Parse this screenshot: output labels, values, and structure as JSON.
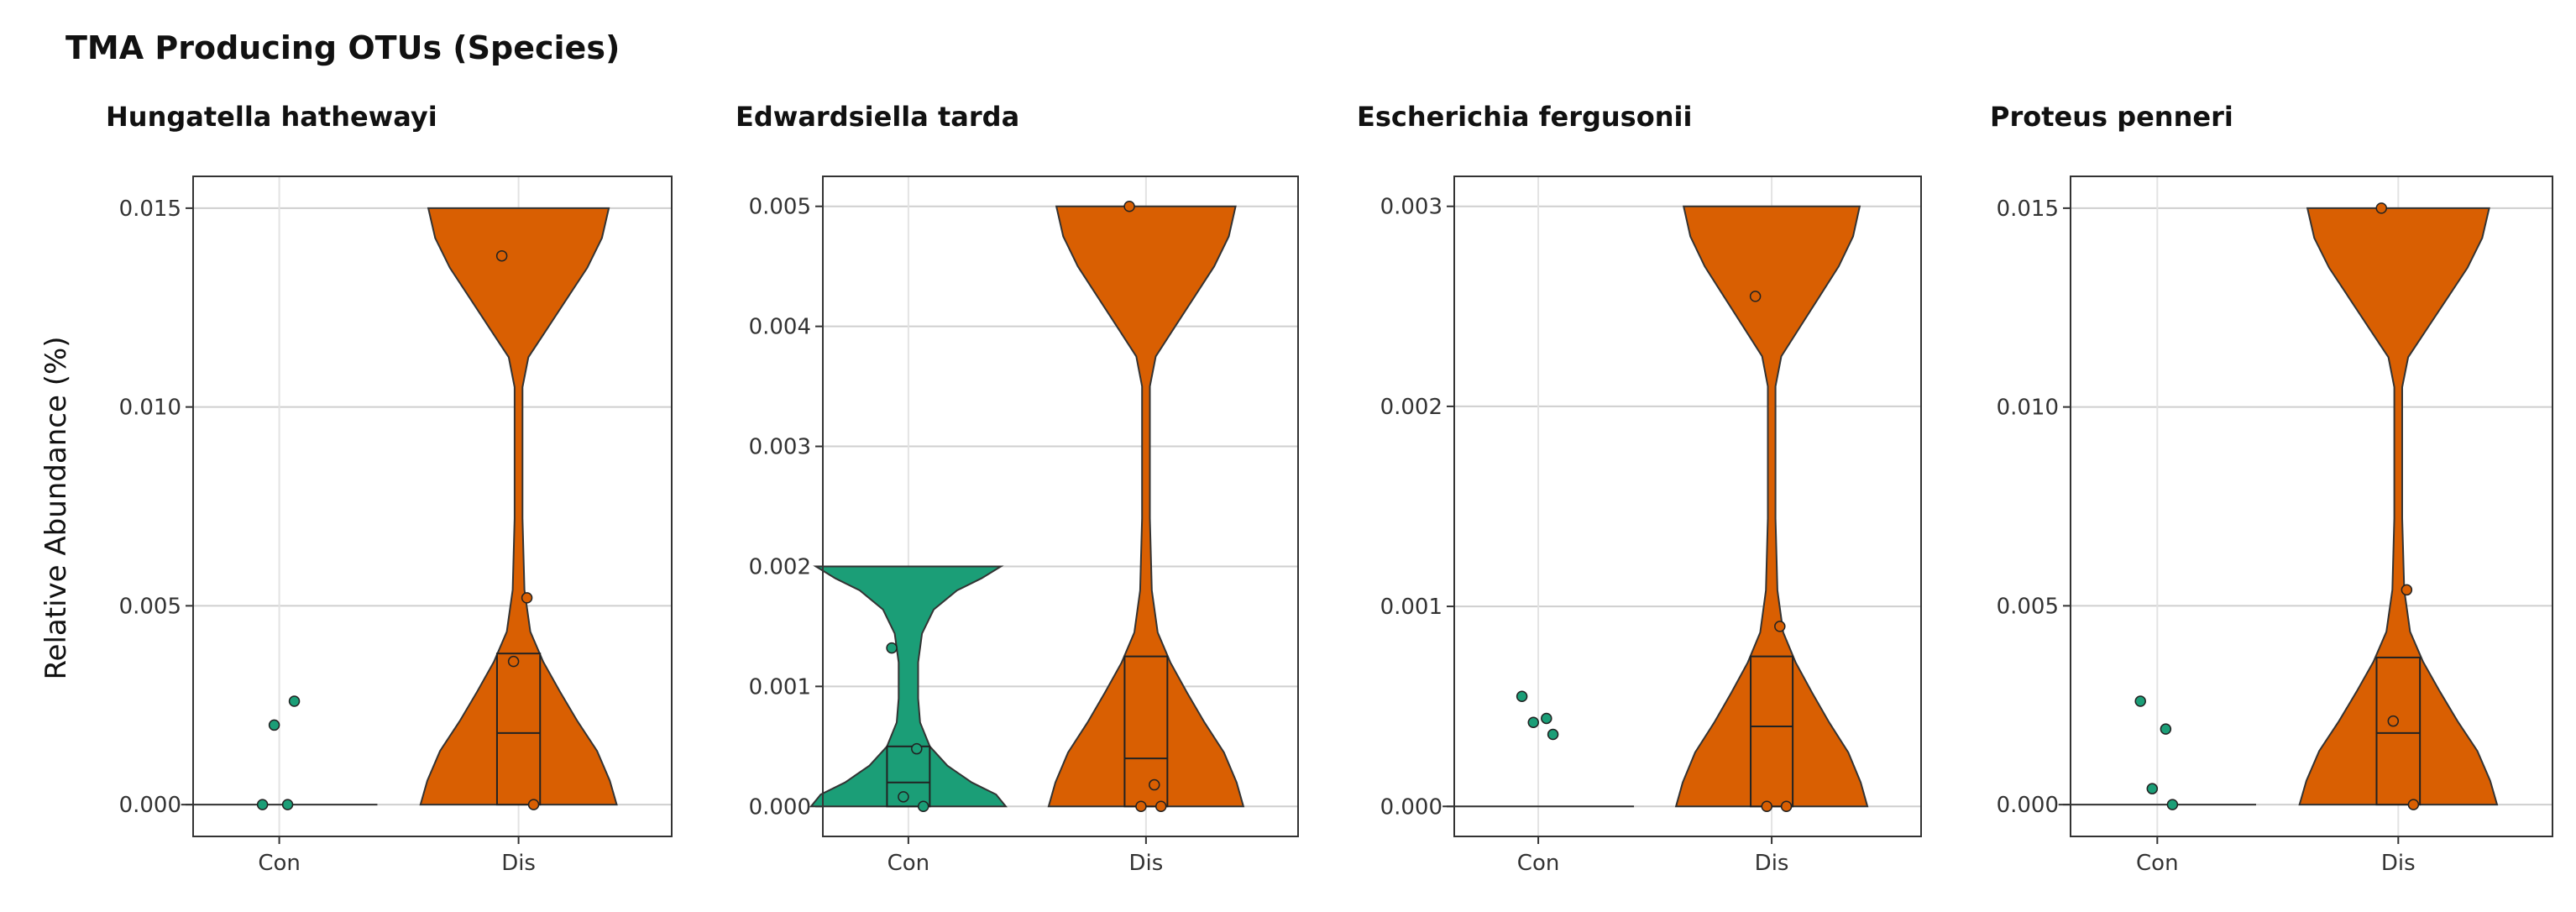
{
  "figure": {
    "title": "TMA Producing OTUs (Species)",
    "ylabel": "Relative Abundance (%)"
  },
  "colors": {
    "Con": "#1b9e77",
    "Dis": "#d95f02"
  },
  "chart_data": [
    {
      "type": "violin",
      "title": "Hungatella hathewayi",
      "categories": [
        "Con",
        "Dis"
      ],
      "ylim": [
        -0.0008,
        0.0158
      ],
      "yticks": [
        0,
        0.005,
        0.01,
        0.015
      ],
      "ytick_labels": [
        "0.000",
        "0.005",
        "0.010",
        "0.015"
      ],
      "grid": true,
      "series": [
        {
          "category": "Con",
          "points": [
            0,
            0,
            0.002,
            0.0026
          ],
          "box": [
            0,
            0,
            0
          ],
          "violin_max": 0
        },
        {
          "category": "Dis",
          "points": [
            0.0138,
            0.0052,
            0.0036,
            0
          ],
          "box": [
            0,
            0.0018,
            0.0038
          ],
          "violin_max": 0.015
        }
      ]
    },
    {
      "type": "violin",
      "title": "Edwardsiella tarda",
      "categories": [
        "Con",
        "Dis"
      ],
      "ylim": [
        -0.00025,
        0.00525
      ],
      "yticks": [
        0,
        0.001,
        0.002,
        0.003,
        0.004,
        0.005
      ],
      "ytick_labels": [
        "0.000",
        "0.001",
        "0.002",
        "0.003",
        "0.004",
        "0.005"
      ],
      "grid": true,
      "series": [
        {
          "category": "Con",
          "points": [
            0.00132,
            0.00048,
            8e-05,
            0
          ],
          "box": [
            0,
            0.0002,
            0.0005
          ],
          "violin_max": 0.002
        },
        {
          "category": "Dis",
          "points": [
            0.005,
            0.00018,
            0,
            0
          ],
          "box": [
            0,
            0.0004,
            0.00125
          ],
          "violin_max": 0.005
        }
      ]
    },
    {
      "type": "violin",
      "title": "Escherichia fergusonii",
      "categories": [
        "Con",
        "Dis"
      ],
      "ylim": [
        -0.00015,
        0.00315
      ],
      "yticks": [
        0,
        0.001,
        0.002,
        0.003
      ],
      "ytick_labels": [
        "0.000",
        "0.001",
        "0.002",
        "0.003"
      ],
      "grid": true,
      "series": [
        {
          "category": "Con",
          "points": [
            0.00055,
            0.00044,
            0.00042,
            0.00036
          ],
          "box": [
            0,
            0,
            0
          ],
          "violin_max": 0
        },
        {
          "category": "Dis",
          "points": [
            0.00255,
            0.0009,
            0,
            0
          ],
          "box": [
            0,
            0.0004,
            0.00075
          ],
          "violin_max": 0.003
        }
      ]
    },
    {
      "type": "violin",
      "title": "Proteus penneri",
      "categories": [
        "Con",
        "Dis"
      ],
      "ylim": [
        -0.0008,
        0.0158
      ],
      "yticks": [
        0,
        0.005,
        0.01,
        0.015
      ],
      "ytick_labels": [
        "0.000",
        "0.005",
        "0.010",
        "0.015"
      ],
      "grid": true,
      "series": [
        {
          "category": "Con",
          "points": [
            0.0026,
            0.0019,
            0.0004,
            0
          ],
          "box": [
            0,
            0,
            0
          ],
          "violin_max": 0
        },
        {
          "category": "Dis",
          "points": [
            0.015,
            0.0054,
            0.0021,
            0
          ],
          "box": [
            0,
            0.0018,
            0.0037
          ],
          "violin_max": 0.015
        }
      ]
    }
  ]
}
